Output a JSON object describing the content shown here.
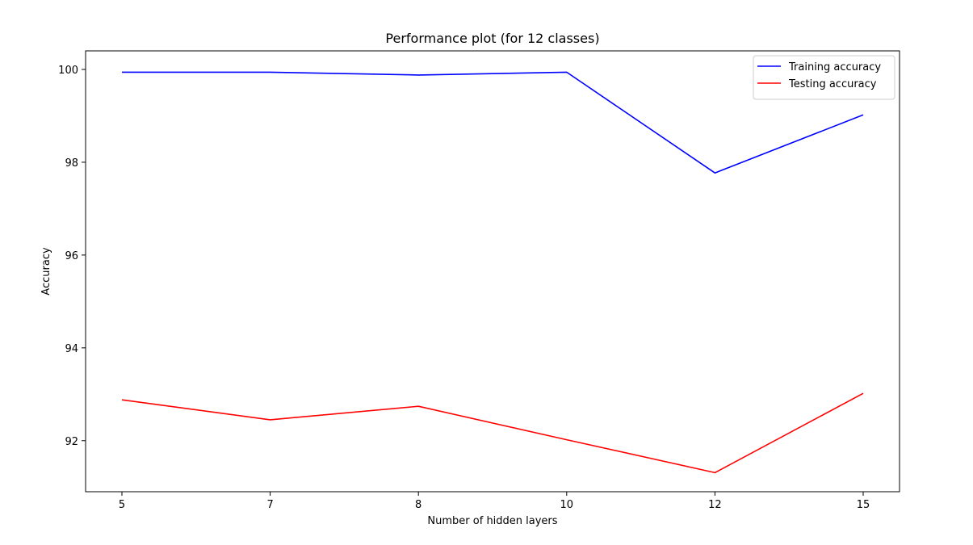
{
  "chart_data": {
    "type": "line",
    "title": "Performance plot (for 12 classes)",
    "xlabel": "Number of hidden layers",
    "ylabel": "Accuracy",
    "categories": [
      "5",
      "7",
      "8",
      "10",
      "12",
      "15"
    ],
    "ylim": [
      90.9,
      100.4
    ],
    "yticks": [
      92,
      94,
      96,
      98,
      100
    ],
    "grid": false,
    "legend_position": "upper right",
    "series": [
      {
        "name": "Training accuracy",
        "color": "#0000ff",
        "values": [
          99.94,
          99.94,
          99.88,
          99.94,
          97.77,
          99.02
        ]
      },
      {
        "name": "Testing accuracy",
        "color": "#ff0000",
        "values": [
          92.88,
          92.45,
          92.74,
          92.02,
          91.31,
          93.02
        ]
      }
    ]
  }
}
